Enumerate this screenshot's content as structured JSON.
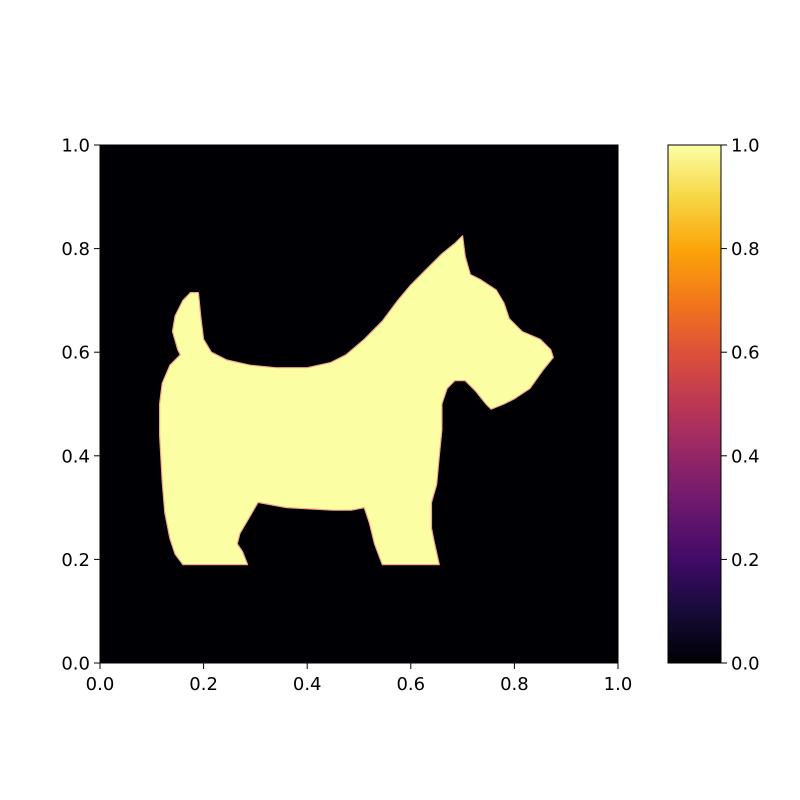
{
  "chart_data": {
    "type": "heatmap",
    "title": "",
    "xlabel": "",
    "ylabel": "",
    "xlim": [
      0.0,
      1.0
    ],
    "ylim": [
      0.0,
      1.0
    ],
    "x_ticks": [
      "0.0",
      "0.2",
      "0.4",
      "0.6",
      "0.8",
      "1.0"
    ],
    "y_ticks": [
      "0.0",
      "0.2",
      "0.4",
      "0.6",
      "0.8",
      "1.0"
    ],
    "grid": false,
    "colormap": "inferno",
    "colorbar": {
      "range": [
        0.0,
        1.0
      ],
      "ticks": [
        "0.0",
        "0.2",
        "0.4",
        "0.6",
        "0.8",
        "1.0"
      ],
      "placement": "right"
    },
    "background_value": 0.0,
    "shape_value": 1.0,
    "shape_outline": [
      [
        0.16,
        0.19
      ],
      [
        0.285,
        0.19
      ],
      [
        0.275,
        0.215
      ],
      [
        0.265,
        0.23
      ],
      [
        0.27,
        0.25
      ],
      [
        0.285,
        0.275
      ],
      [
        0.305,
        0.31
      ],
      [
        0.36,
        0.3
      ],
      [
        0.45,
        0.295
      ],
      [
        0.485,
        0.295
      ],
      [
        0.51,
        0.3
      ],
      [
        0.52,
        0.27
      ],
      [
        0.53,
        0.23
      ],
      [
        0.545,
        0.19
      ],
      [
        0.655,
        0.19
      ],
      [
        0.645,
        0.235
      ],
      [
        0.64,
        0.26
      ],
      [
        0.64,
        0.31
      ],
      [
        0.65,
        0.345
      ],
      [
        0.655,
        0.4
      ],
      [
        0.66,
        0.45
      ],
      [
        0.66,
        0.5
      ],
      [
        0.67,
        0.53
      ],
      [
        0.685,
        0.545
      ],
      [
        0.705,
        0.545
      ],
      [
        0.725,
        0.525
      ],
      [
        0.745,
        0.5
      ],
      [
        0.755,
        0.49
      ],
      [
        0.78,
        0.5
      ],
      [
        0.8,
        0.51
      ],
      [
        0.83,
        0.53
      ],
      [
        0.855,
        0.565
      ],
      [
        0.875,
        0.59
      ],
      [
        0.87,
        0.605
      ],
      [
        0.85,
        0.625
      ],
      [
        0.815,
        0.64
      ],
      [
        0.79,
        0.665
      ],
      [
        0.78,
        0.695
      ],
      [
        0.765,
        0.72
      ],
      [
        0.735,
        0.74
      ],
      [
        0.715,
        0.75
      ],
      [
        0.705,
        0.785
      ],
      [
        0.7,
        0.825
      ],
      [
        0.685,
        0.81
      ],
      [
        0.66,
        0.79
      ],
      [
        0.63,
        0.76
      ],
      [
        0.6,
        0.73
      ],
      [
        0.575,
        0.7
      ],
      [
        0.545,
        0.66
      ],
      [
        0.51,
        0.625
      ],
      [
        0.475,
        0.595
      ],
      [
        0.445,
        0.58
      ],
      [
        0.4,
        0.57
      ],
      [
        0.34,
        0.57
      ],
      [
        0.29,
        0.575
      ],
      [
        0.245,
        0.585
      ],
      [
        0.215,
        0.6
      ],
      [
        0.2,
        0.625
      ],
      [
        0.195,
        0.665
      ],
      [
        0.19,
        0.715
      ],
      [
        0.175,
        0.715
      ],
      [
        0.16,
        0.7
      ],
      [
        0.145,
        0.67
      ],
      [
        0.14,
        0.64
      ],
      [
        0.15,
        0.605
      ],
      [
        0.155,
        0.595
      ],
      [
        0.135,
        0.575
      ],
      [
        0.12,
        0.54
      ],
      [
        0.115,
        0.5
      ],
      [
        0.115,
        0.44
      ],
      [
        0.12,
        0.35
      ],
      [
        0.125,
        0.29
      ],
      [
        0.135,
        0.24
      ],
      [
        0.145,
        0.21
      ],
      [
        0.16,
        0.19
      ]
    ]
  }
}
